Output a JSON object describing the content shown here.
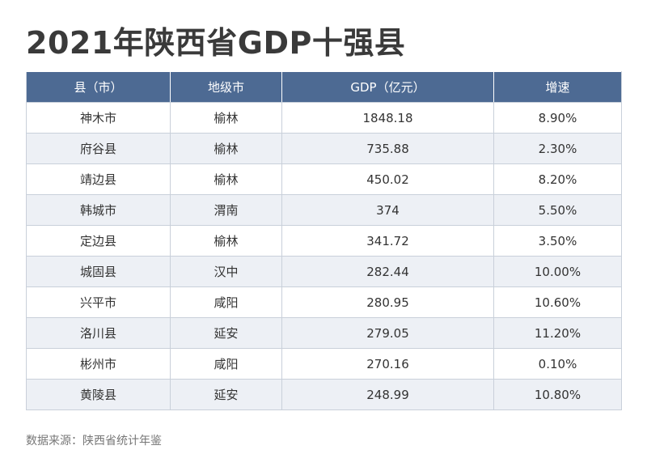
{
  "title": "2021年陕西省GDP十强县",
  "table": {
    "headers": [
      "县（市）",
      "地级市",
      "GDP（亿元）",
      "增速"
    ],
    "rows": [
      [
        "神木市",
        "榆林",
        "1848.18",
        "8.90%"
      ],
      [
        "府谷县",
        "榆林",
        "735.88",
        "2.30%"
      ],
      [
        "靖边县",
        "榆林",
        "450.02",
        "8.20%"
      ],
      [
        "韩城市",
        "渭南",
        "374",
        "5.50%"
      ],
      [
        "定边县",
        "榆林",
        "341.72",
        "3.50%"
      ],
      [
        "城固县",
        "汉中",
        "282.44",
        "10.00%"
      ],
      [
        "兴平市",
        "咸阳",
        "280.95",
        "10.60%"
      ],
      [
        "洛川县",
        "延安",
        "279.05",
        "11.20%"
      ],
      [
        "彬州市",
        "咸阳",
        "270.16",
        "0.10%"
      ],
      [
        "黄陵县",
        "延安",
        "248.99",
        "10.80%"
      ]
    ]
  },
  "source": "数据来源：陕西省统计年鉴",
  "colors": {
    "header_bg": "#4d6a93",
    "stripe_bg": "#edf0f5",
    "border": "#c9d0da"
  }
}
